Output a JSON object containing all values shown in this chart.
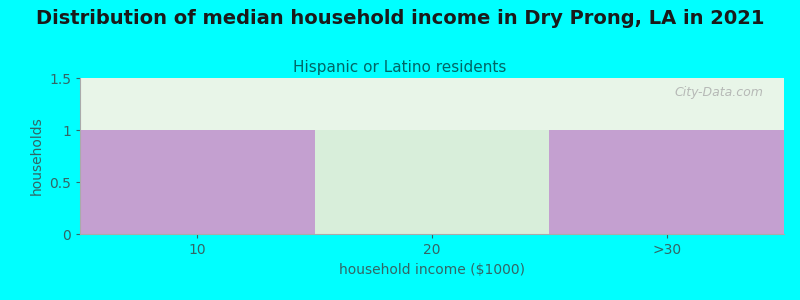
{
  "title": "Distribution of median household income in Dry Prong, LA in 2021",
  "subtitle": "Hispanic or Latino residents",
  "xlabel": "household income ($1000)",
  "ylabel": "households",
  "background_color": "#00FFFF",
  "plot_bg_top": "#e8f5e8",
  "plot_bg_bottom": "#f5fff5",
  "categories": [
    "10",
    "20",
    ">30"
  ],
  "values": [
    1,
    1,
    1
  ],
  "bar_colors": [
    "#c4a0d0",
    "#d8eeda",
    "#c4a0d0"
  ],
  "ylim": [
    0,
    1.5
  ],
  "yticks": [
    0,
    0.5,
    1,
    1.5
  ],
  "title_fontsize": 14,
  "subtitle_fontsize": 11,
  "subtitle_color": "#006666",
  "title_color": "#1a1a1a",
  "axis_label_color": "#336666",
  "tick_color": "#336666",
  "watermark": "City-Data.com",
  "watermark_color": "#aaaaaa",
  "figure_width": 8.0,
  "figure_height": 3.0
}
